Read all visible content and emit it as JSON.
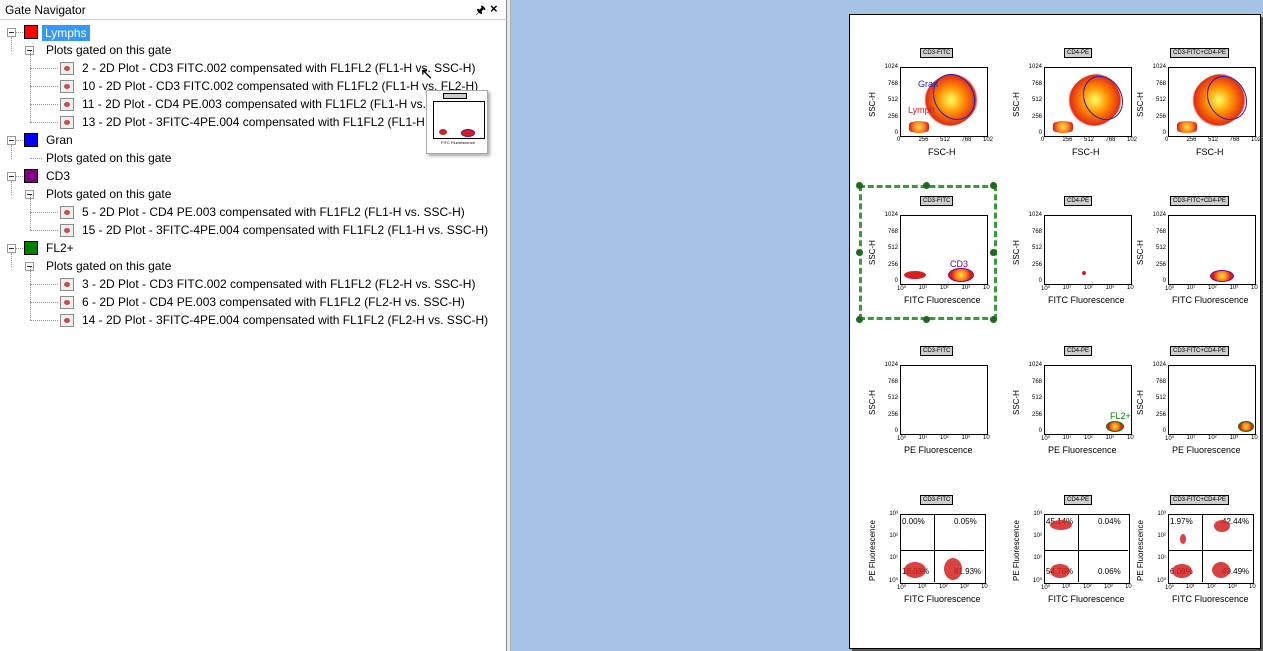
{
  "gate_navigator": {
    "title": "Gate Navigator",
    "pin_icon": "📌",
    "close_icon": "✕",
    "gates": [
      {
        "name": "Lymphs",
        "color": "#ff0000",
        "selected": true,
        "plots_label": "Plots gated on this gate",
        "plots": [
          "2 - 2D Plot - CD3 FITC.002 compensated with FL1FL2 (FL1-H vs. SSC-H)",
          "10 - 2D Plot - CD3 FITC.002 compensated with FL1FL2 (FL1-H vs. FL2-H)",
          "11 - 2D Plot - CD4 PE.003 compensated with FL1FL2 (FL1-H vs. FL2-H)",
          "13 - 2D Plot - 3FITC-4PE.004 compensated with FL1FL2 (FL1-H vs. FL2"
        ]
      },
      {
        "name": "Gran",
        "color": "#0000ff",
        "plots_label": "Plots gated on this gate",
        "plots": []
      },
      {
        "name": "CD3",
        "color": "#800080",
        "plots_label": "Plots gated on this gate",
        "plots": [
          "5 - 2D Plot - CD4 PE.003 compensated with FL1FL2 (FL1-H vs. SSC-H)",
          "15 - 2D Plot - 3FITC-4PE.004 compensated with FL1FL2 (FL1-H vs. SSC-H)"
        ]
      },
      {
        "name": "FL2+",
        "color": "#008000",
        "plots_label": "Plots gated on this gate",
        "plots": [
          "3 - 2D Plot - CD3 FITC.002 compensated with FL1FL2 (FL2-H vs. SSC-H)",
          "6 - 2D Plot - CD4 PE.003 compensated with FL1FL2 (FL2-H vs. SSC-H)",
          "14 - 2D Plot - 3FITC-4PE.004 compensated with FL1FL2 (FL2-H vs. SSC-H)"
        ]
      }
    ],
    "thumbnail": {
      "xlabel": "FITC Fluorescence"
    }
  },
  "report": {
    "column_titles": [
      "CD3-FITC",
      "CD4-PE",
      "CD3-FITC+CD4-PE"
    ],
    "rows": [
      {
        "ylabel": "SSC-H",
        "xlabel": "FSC-H",
        "yticks": [
          "1024",
          "768",
          "512",
          "256",
          "0"
        ],
        "xticks": [
          "0",
          "256",
          "512",
          "768",
          "102"
        ],
        "gate_labels": [
          "Gran",
          "Lymph"
        ]
      },
      {
        "ylabel": "SSC-H",
        "xlabel": "FITC Fluorescence",
        "yticks": [
          "1024",
          "768",
          "512",
          "256",
          "0"
        ],
        "xticks": [
          "10⁰",
          "10¹",
          "10²",
          "10³",
          "10"
        ],
        "gate_labels": [
          "CD3"
        ]
      },
      {
        "ylabel": "SSC-H",
        "xlabel": "PE Fluorescence",
        "yticks": [
          "1024",
          "768",
          "512",
          "256",
          "0"
        ],
        "xticks": [
          "10⁰",
          "10¹",
          "10²",
          "10³",
          "10"
        ],
        "gate_labels": [
          "FL2+"
        ]
      },
      {
        "ylabel": "PE Fluorescence",
        "xlabel": "FITC Fluorescence",
        "yticks": [
          "10³",
          "10²",
          "10¹",
          "10⁰"
        ],
        "xticks": [
          "10⁰",
          "10¹",
          "10²",
          "10³",
          "10"
        ],
        "quadrants": [
          [
            "0.00%",
            "0.05%",
            "18.03%",
            "81.93%"
          ],
          [
            "45.14%",
            "0.04%",
            "54.76%",
            "0.06%"
          ],
          [
            "1.97%",
            "42.44%",
            "6.09%",
            "49.49%"
          ]
        ]
      }
    ]
  }
}
